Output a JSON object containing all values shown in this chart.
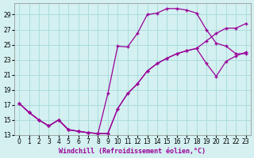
{
  "xlabel": "Windchill (Refroidissement éolien,°C)",
  "bg_color": "#d4f0f0",
  "grid_color": "#aadddd",
  "line_color": "#990099",
  "yticks": [
    13,
    15,
    17,
    19,
    21,
    23,
    25,
    27,
    29
  ],
  "xticks": [
    0,
    1,
    2,
    3,
    4,
    5,
    6,
    7,
    8,
    9,
    10,
    11,
    12,
    13,
    14,
    15,
    16,
    17,
    18,
    19,
    20,
    21,
    22,
    23
  ],
  "line1_x": [
    0,
    1,
    2,
    3,
    4,
    5,
    6,
    7,
    8,
    9,
    10,
    11,
    12,
    13,
    14,
    15,
    16,
    17,
    18,
    19,
    20,
    21,
    22,
    23
  ],
  "line1_y": [
    17.2,
    16.0,
    15.0,
    14.2,
    15.0,
    13.7,
    13.5,
    13.3,
    13.2,
    18.5,
    24.8,
    24.7,
    26.5,
    29.0,
    29.2,
    29.8,
    29.8,
    29.6,
    29.2,
    27.0,
    25.2,
    24.8,
    23.8,
    23.8
  ],
  "line2_x": [
    0,
    1,
    2,
    3,
    4,
    5,
    6,
    7,
    8,
    9,
    10,
    11,
    12,
    13,
    14,
    15,
    16,
    17,
    18,
    19,
    20,
    21,
    22,
    23
  ],
  "line2_y": [
    17.2,
    16.0,
    15.0,
    14.2,
    15.0,
    13.7,
    13.5,
    13.3,
    13.2,
    13.2,
    16.5,
    18.5,
    19.8,
    21.5,
    22.5,
    23.2,
    23.8,
    24.2,
    24.5,
    25.5,
    26.5,
    27.2,
    27.2,
    27.8
  ],
  "line3_x": [
    0,
    1,
    2,
    3,
    4,
    5,
    6,
    7,
    8,
    9,
    10,
    11,
    12,
    13,
    14,
    15,
    16,
    17,
    18,
    19,
    20,
    21,
    22,
    23
  ],
  "line3_y": [
    17.2,
    16.0,
    15.0,
    14.2,
    15.0,
    13.7,
    13.5,
    13.3,
    13.2,
    13.2,
    16.5,
    18.5,
    19.8,
    21.5,
    22.5,
    23.2,
    23.8,
    24.2,
    24.5,
    22.5,
    20.8,
    22.8,
    23.5,
    24.0
  ],
  "markersize": 3,
  "linewidth": 0.9,
  "label_fontsize": 6,
  "tick_fontsize": 5.5
}
